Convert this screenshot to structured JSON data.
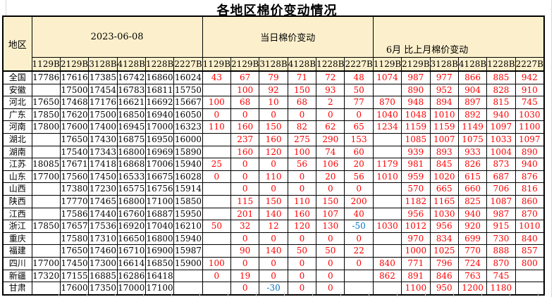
{
  "title": "各地区棉价变动情况",
  "table": {
    "region_header": "地区",
    "groups": [
      {
        "label": "2023-06-08",
        "subcols": [
          "1129B",
          "2129B",
          "3128B",
          "4128B",
          "1228B",
          "2227B"
        ]
      },
      {
        "label": "当日棉价变动",
        "subcols": [
          "1129B",
          "2129B",
          "3128B",
          "4128B",
          "1228B",
          "2227B"
        ]
      },
      {
        "label": "6月 比上月棉价变动",
        "subcols": [
          "1129B",
          "2129B",
          "3128B",
          "4128B",
          "1228B",
          "2227B"
        ]
      }
    ],
    "rows": [
      {
        "region": "全国",
        "prices": [
          "17786",
          "17616",
          "17385",
          "16742",
          "16860",
          "16024"
        ],
        "daily_change": [
          "43",
          "67",
          "79",
          "71",
          "72",
          "48"
        ],
        "monthly_change": [
          "1074",
          "987",
          "977",
          "866",
          "885",
          "942"
        ]
      },
      {
        "region": "安徽",
        "prices": [
          "",
          "17500",
          "17454",
          "16783",
          "16811",
          "15750"
        ],
        "daily_change": [
          "",
          "100",
          "92",
          "150",
          "93",
          "50"
        ],
        "monthly_change": [
          "",
          "890",
          "952",
          "904",
          "828",
          "910"
        ]
      },
      {
        "region": "河北",
        "prices": [
          "17650",
          "17468",
          "17176",
          "16621",
          "16692",
          "15667"
        ],
        "daily_change": [
          "100",
          "68",
          "10",
          "68",
          "2",
          "77"
        ],
        "monthly_change": [
          "870",
          "948",
          "894",
          "897",
          "815",
          "745"
        ]
      },
      {
        "region": "广东",
        "prices": [
          "17850",
          "17620",
          "17500",
          "16850",
          "16940",
          "16050"
        ],
        "daily_change": [
          "0",
          "0",
          "0",
          "0",
          "0",
          "0"
        ],
        "monthly_change": [
          "1040",
          "1048",
          "1010",
          "892",
          "940",
          "1030"
        ]
      },
      {
        "region": "河南",
        "prices": [
          "17800",
          "17600",
          "17400",
          "16945",
          "17000",
          "16323"
        ],
        "daily_change": [
          "110",
          "160",
          "150",
          "82",
          "62",
          "65"
        ],
        "monthly_change": [
          "1234",
          "1159",
          "1159",
          "1149",
          "1097",
          "1100"
        ]
      },
      {
        "region": "湖北",
        "prices": [
          "",
          "17650",
          "17430",
          "16875",
          "16950",
          "16000"
        ],
        "daily_change": [
          "",
          "237",
          "160",
          "275",
          "290",
          "153"
        ],
        "monthly_change": [
          "",
          "1085",
          "1007",
          "1075",
          "1033",
          "1097"
        ]
      },
      {
        "region": "湖南",
        "prices": [
          "",
          "17540",
          "17343",
          "16800",
          "16969",
          "15890"
        ],
        "daily_change": [
          "",
          "160",
          "120",
          "100",
          "74",
          "60"
        ],
        "monthly_change": [
          "",
          "939",
          "893",
          "933",
          "1004",
          "890"
        ]
      },
      {
        "region": "江苏",
        "prices": [
          "18085",
          "17671",
          "17418",
          "16868",
          "17006",
          "15940"
        ],
        "daily_change": [
          "25",
          "0",
          "0",
          "56",
          "106",
          "20"
        ],
        "monthly_change": [
          "1179",
          "981",
          "845",
          "826",
          "873",
          "940"
        ]
      },
      {
        "region": "山东",
        "prices": [
          "17700",
          "17560",
          "17450",
          "16533",
          "16675",
          "16028"
        ],
        "daily_change": [
          "0",
          "0",
          "110",
          "0",
          "20",
          "56"
        ],
        "monthly_change": [
          "1010",
          "959",
          "1020",
          "615",
          "687",
          "876"
        ]
      },
      {
        "region": "山西",
        "prices": [
          "",
          "17380",
          "17230",
          "16575",
          "16756",
          "15914"
        ],
        "daily_change": [
          "",
          "0",
          "0",
          "0",
          "0",
          "0"
        ],
        "monthly_change": [
          "",
          "570",
          "665",
          "660",
          "706",
          "816"
        ]
      },
      {
        "region": "陕西",
        "prices": [
          "",
          "17770",
          "17465",
          "16800",
          "17100",
          "15850"
        ],
        "daily_change": [
          "",
          "115",
          "150",
          "110",
          "150",
          "200"
        ],
        "monthly_change": [
          "",
          "1182",
          "1165",
          "825",
          "1087",
          "860"
        ]
      },
      {
        "region": "江西",
        "prices": [
          "",
          "17586",
          "17440",
          "16760",
          "16887",
          "15950"
        ],
        "daily_change": [
          "",
          "201",
          "140",
          "160",
          "107",
          "40"
        ],
        "monthly_change": [
          "",
          "956",
          "1030",
          "940",
          "987",
          "870"
        ]
      },
      {
        "region": "浙江",
        "prices": [
          "17850",
          "17657",
          "17536",
          "16920",
          "17040",
          "16210"
        ],
        "daily_change": [
          "50",
          "32",
          "12",
          "120",
          "130",
          "-50"
        ],
        "monthly_change": [
          "1030",
          "1012",
          "956",
          "920",
          "915",
          "1010"
        ]
      },
      {
        "region": "重庆",
        "prices": [
          "",
          "17580",
          "17310",
          "16650",
          "16800",
          "15940"
        ],
        "daily_change": [
          "",
          "0",
          "0",
          "0",
          "0",
          "0"
        ],
        "monthly_change": [
          "",
          "970",
          "834",
          "699",
          "730",
          "840"
        ]
      },
      {
        "region": "福建",
        "prices": [
          "",
          "17650",
          "17460",
          "16710",
          "16900",
          "15987"
        ],
        "daily_change": [
          "",
          "90",
          "140",
          "50",
          "50",
          "22"
        ],
        "monthly_change": [
          "",
          "1000",
          "1025",
          "770",
          "888",
          "857"
        ]
      },
      {
        "region": "四川",
        "prices": [
          "17700",
          "17450",
          "17300",
          "16614",
          "16850",
          "15900"
        ],
        "daily_change": [
          "100",
          "0",
          "0",
          "0",
          "0",
          "0"
        ],
        "monthly_change": [
          "840",
          "771",
          "796",
          "724",
          "870",
          "800"
        ]
      },
      {
        "region": "新疆",
        "prices": [
          "17320",
          "17155",
          "16885",
          "16286",
          "16418",
          ""
        ],
        "daily_change": [
          "0",
          "19",
          "0",
          "0",
          "0",
          ""
        ],
        "monthly_change": [
          "862",
          "891",
          "846",
          "763",
          "745",
          ""
        ]
      },
      {
        "region": "甘肃",
        "prices": [
          "",
          "17600",
          "17350",
          "17000",
          "17100",
          ""
        ],
        "daily_change": [
          "",
          "0",
          "-30",
          "0",
          "0",
          ""
        ],
        "monthly_change": [
          "",
          "1100",
          "950",
          "1200",
          "1180",
          ""
        ]
      }
    ]
  },
  "colors": {
    "header_bg": "#fcf0cc",
    "positive_change": "#ff0000",
    "negative_change": "#0070c0",
    "border": "#000000"
  }
}
